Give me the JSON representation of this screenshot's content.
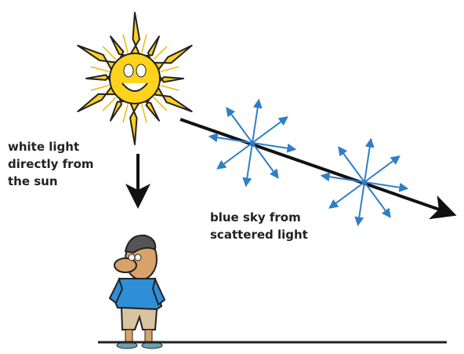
{
  "labels": {
    "direct_light": [
      "white light",
      "directly from",
      "the sun"
    ],
    "sky": [
      "blue sky from",
      "scattered light"
    ]
  }
}
